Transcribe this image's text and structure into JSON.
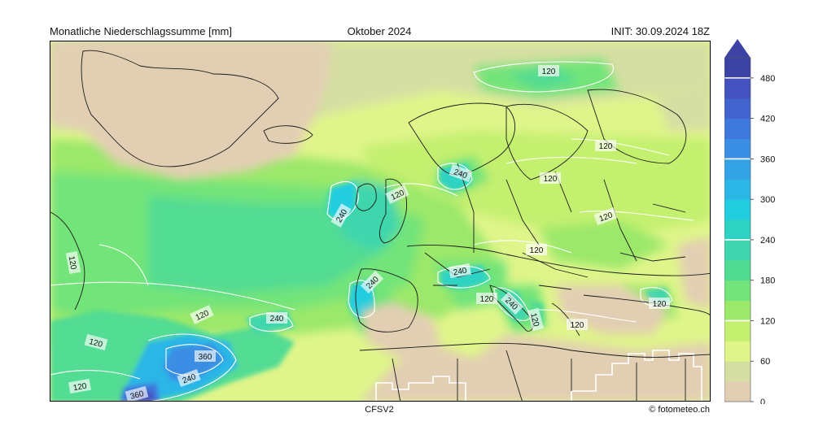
{
  "header": {
    "title_left": "Monatliche Niederschlagssumme [mm]",
    "title_center": "Oktober 2024",
    "title_right": "INIT: 30.09.2024 18Z"
  },
  "footer": {
    "model": "CFSV2",
    "credit": "© fotometeo.ch"
  },
  "chart_data": {
    "type": "heatmap",
    "variable": "precipitation",
    "unit": "mm",
    "colorbar": {
      "ticks": [
        0,
        60,
        120,
        180,
        240,
        300,
        360,
        420,
        480
      ],
      "tick_labels": [
        "0",
        "60",
        "120",
        "180",
        "240",
        "300",
        "360",
        "420",
        "480"
      ],
      "levels": [
        0,
        30,
        60,
        90,
        120,
        150,
        180,
        210,
        240,
        270,
        300,
        330,
        360,
        390,
        420,
        450,
        480,
        510
      ],
      "colors": [
        "#e2cfb3",
        "#d6dfa3",
        "#dff58a",
        "#c4f06f",
        "#9be86b",
        "#72e479",
        "#52dc93",
        "#3fd6ad",
        "#2ed3c4",
        "#22cde0",
        "#2bb6e6",
        "#33a3e6",
        "#3a8ee4",
        "#3f78dc",
        "#4264cf",
        "#4352be",
        "#3d43a5"
      ],
      "extend": "max",
      "white_lines_at": [
        120,
        240,
        360,
        480
      ]
    },
    "contour_labels": [
      "120",
      "120",
      "120",
      "120",
      "120",
      "120",
      "120",
      "120",
      "120",
      "120",
      "120",
      "120",
      "120",
      "120",
      "240",
      "240",
      "240",
      "240",
      "240",
      "240",
      "240",
      "360",
      "360"
    ]
  },
  "icons": {
    "colorbar_extend": "triangle-up-icon"
  }
}
